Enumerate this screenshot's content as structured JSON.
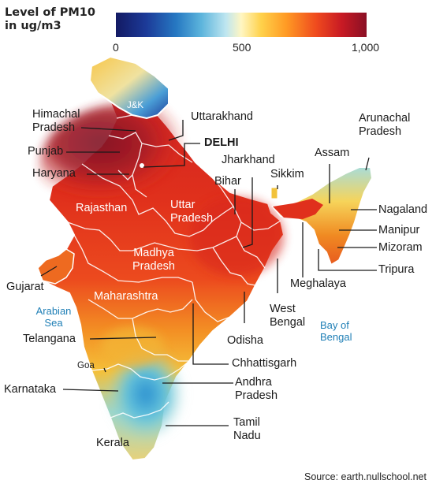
{
  "legend": {
    "title_line1": "Level of PM10",
    "title_line2": "in ug/m3",
    "ticks": [
      "0",
      "500",
      "1,000"
    ],
    "range": [
      0,
      1000
    ]
  },
  "labels": {
    "jk": "J&K",
    "himachal_1": "Himachal",
    "himachal_2": "Pradesh",
    "uttarakhand": "Uttarakhand",
    "punjab": "Punjab",
    "delhi": "DELHI",
    "haryana": "Haryana",
    "jharkhand": "Jharkhand",
    "sikkim": "Sikkim",
    "assam": "Assam",
    "arunachal_1": "Arunachal",
    "arunachal_2": "Pradesh",
    "bihar": "Bihar",
    "rajasthan": "Rajasthan",
    "uttar_1": "Uttar",
    "uttar_2": "Pradesh",
    "nagaland": "Nagaland",
    "manipur": "Manipur",
    "madhya_1": "Madhya",
    "madhya_2": "Pradesh",
    "mizoram": "Mizoram",
    "tripura": "Tripura",
    "meghalaya": "Meghalaya",
    "gujarat": "Gujarat",
    "maharashtra": "Maharashtra",
    "west_1": "West",
    "west_2": "Bengal",
    "arabian_1": "Arabian",
    "arabian_2": "Sea",
    "bay_1": "Bay of",
    "bay_2": "Bengal",
    "telangana": "Telangana",
    "odisha": "Odisha",
    "goa": "Goa",
    "chhattisgarh": "Chhattisgarh",
    "andhra_1": "Andhra",
    "andhra_2": "Pradesh",
    "karnataka": "Karnataka",
    "tamil_1": "Tamil",
    "tamil_2": "Nadu",
    "kerala": "Kerala"
  },
  "source": "Source: earth.nullschool.net",
  "colors": {
    "scale_low": "#131a63",
    "scale_mid": "#fff6c2",
    "scale_high": "#8a1025",
    "map_red": "#e0301c",
    "map_dark_red": "#8b1a2a",
    "map_orange": "#f07a1e",
    "map_yellow": "#f5c23a",
    "map_cyan": "#6ac8d8",
    "sea_label": "#1f7fb6"
  }
}
